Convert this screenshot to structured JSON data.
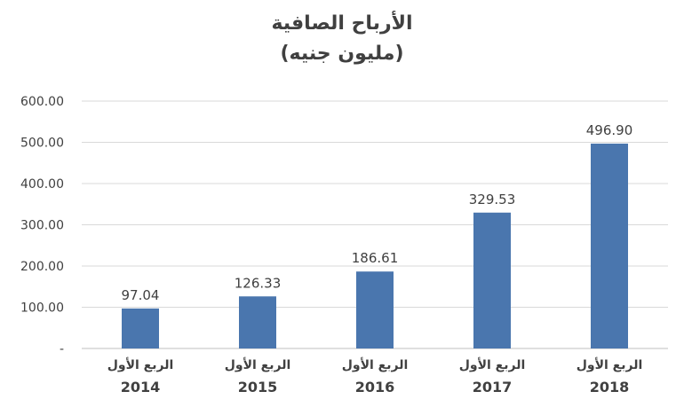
{
  "chart_data": {
    "type": "bar",
    "title": "الأرباح الصافية",
    "subtitle": "(مليون جنيه)",
    "categories": [
      {
        "label": "الربع الأول",
        "year": "2014"
      },
      {
        "label": "الربع الأول",
        "year": "2015"
      },
      {
        "label": "الربع الأول",
        "year": "2016"
      },
      {
        "label": "الربع الأول",
        "year": "2017"
      },
      {
        "label": "الربع الأول",
        "year": "2018"
      }
    ],
    "values": [
      97.04,
      126.33,
      186.61,
      329.53,
      496.9
    ],
    "value_labels": [
      "97.04",
      "126.33",
      "186.61",
      "329.53",
      "496.90"
    ],
    "yticks": [
      {
        "value": 0,
        "label": "-"
      },
      {
        "value": 100,
        "label": "100.00"
      },
      {
        "value": 200,
        "label": "200.00"
      },
      {
        "value": 300,
        "label": "300.00"
      },
      {
        "value": 400,
        "label": "400.00"
      },
      {
        "value": 500,
        "label": "500.00"
      },
      {
        "value": 600,
        "label": "600.00"
      }
    ],
    "ylim": [
      0,
      600
    ],
    "grid": true,
    "bar_color": "#4A76AE",
    "grid_color": "#D9D9D9",
    "text_color": "#404040"
  }
}
